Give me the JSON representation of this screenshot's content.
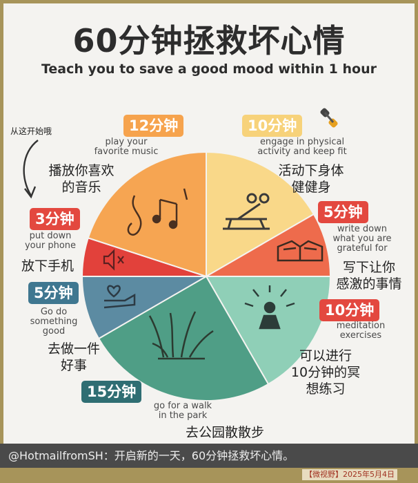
{
  "title": "60分钟拯救坏心情",
  "subtitle": "Teach you to save a good mood within 1 hour",
  "start_label": "从这开始哦",
  "segments": {
    "music": {
      "badge": "12分钟",
      "en": "play your\nfavorite music",
      "cn": "播放你喜欢\n的音乐",
      "color": "#f6a552"
    },
    "exercise": {
      "badge": "10分钟",
      "en": "engage in physical\nactivity and keep fit",
      "cn": "活动下身体\n健健身",
      "color": "#f9d889"
    },
    "grateful": {
      "badge": "5分钟",
      "en": "write down\nwhat you are\ngrateful for",
      "cn": "写下让你\n感激的事情",
      "color": "#ee6b4c"
    },
    "meditation": {
      "badge": "10分钟",
      "en": "meditation\nexercises",
      "cn": "可以进行\n10分钟的冥\n想练习",
      "color": "#8fcfb7"
    },
    "walk": {
      "badge": "15分钟",
      "en": "go for a walk\nin the park",
      "cn": "去公园散散步",
      "color": "#4f9e86"
    },
    "good_deed": {
      "badge": "5分钟",
      "en": "Go do\nsomething\ngood",
      "cn": "去做一件\n好事",
      "color": "#5c8ba2"
    },
    "phone": {
      "badge": "3分钟",
      "en": "put down\nyour phone",
      "cn": "放下手机",
      "color": "#e2413b"
    }
  },
  "badge_colors": {
    "orange": "#f6a34d",
    "yellow": "#f7d27a",
    "red": "#e3483f",
    "blue": "#3f7790",
    "teal_dark": "#2f6e73"
  },
  "footer_text": "@HotmailfromSH：开启新的一天，60分钟拯救坏心情。",
  "stamp_text": "【微视野】2025年5月4日",
  "icons": [
    "music-notes-icon",
    "weight-bench-icon",
    "open-book-icon",
    "meditation-icon",
    "grass-icon",
    "heart-hand-icon",
    "phone-mute-icon",
    "dumbbell-icon",
    "curved-arrow-icon"
  ]
}
